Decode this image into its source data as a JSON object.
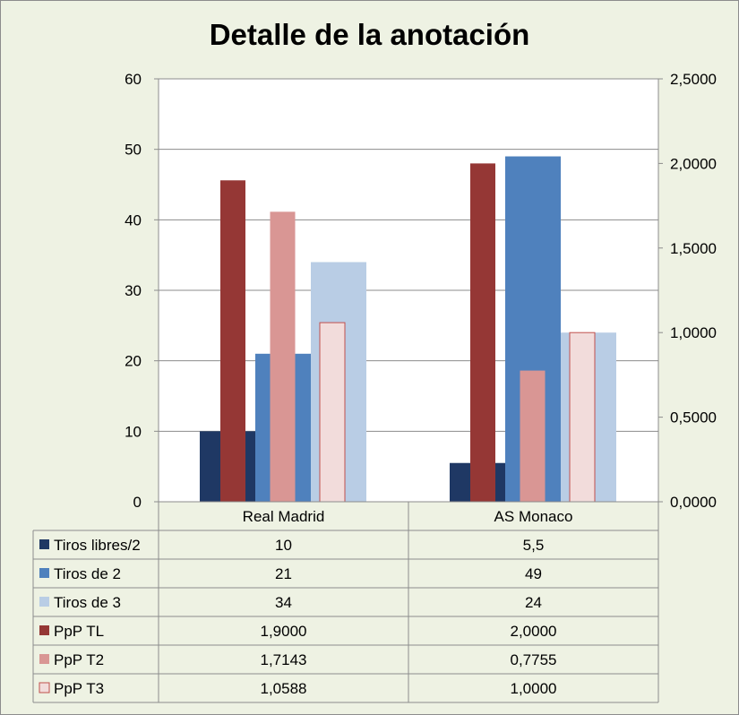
{
  "chart_data": {
    "type": "bar",
    "title": "Detalle de la anotación",
    "categories": [
      "Real Madrid",
      "AS Monaco"
    ],
    "y_left": {
      "ylim": [
        0,
        60
      ],
      "ticks": [
        "0",
        "10",
        "20",
        "30",
        "40",
        "50",
        "60"
      ]
    },
    "y_right": {
      "ylim": [
        0,
        2.5
      ],
      "ticks": [
        "0,0000",
        "0,5000",
        "1,0000",
        "1,5000",
        "2,0000",
        "2,5000"
      ]
    },
    "grid": true,
    "legend": "table-below",
    "series": [
      {
        "name": "Tiros libres/2",
        "axis": "left",
        "color": "#1f3864",
        "values": [
          10,
          5.5
        ],
        "labels": [
          "10",
          "5,5"
        ]
      },
      {
        "name": "Tiros de 2",
        "axis": "left",
        "color": "#4f81bd",
        "values": [
          21,
          49
        ],
        "labels": [
          "21",
          "49"
        ]
      },
      {
        "name": "Tiros de 3",
        "axis": "left",
        "color": "#b9cde5",
        "values": [
          34,
          24
        ],
        "labels": [
          "34",
          "24"
        ]
      },
      {
        "name": "PpP TL",
        "axis": "right",
        "color": "#953735",
        "values": [
          1.9,
          2.0
        ],
        "labels": [
          "1,9000",
          "2,0000"
        ]
      },
      {
        "name": "PpP T2",
        "axis": "right",
        "color": "#d99694",
        "values": [
          1.7143,
          0.7755
        ],
        "labels": [
          "1,7143",
          "0,7755"
        ]
      },
      {
        "name": "PpP T3",
        "axis": "right",
        "color": "#f2dcdb",
        "values": [
          1.0588,
          1.0
        ],
        "labels": [
          "1,0588",
          "1,0000"
        ]
      }
    ]
  }
}
